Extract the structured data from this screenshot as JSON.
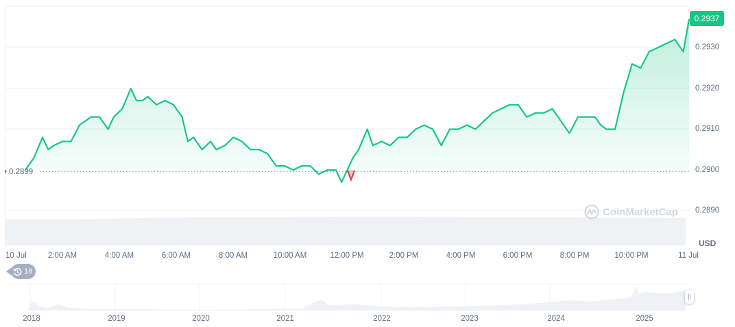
{
  "chart_data": {
    "type": "area",
    "title": "",
    "currency": "USD",
    "xlabel": "",
    "ylabel": "USD",
    "ylim": [
      0.28865,
      0.29395
    ],
    "grid": true,
    "current_price": "0.2937",
    "reference_price": "0.2899",
    "x_ticks": [
      "10 Jul",
      "2:00 AM",
      "4:00 AM",
      "6:00 AM",
      "8:00 AM",
      "10:00 AM",
      "12:00 PM",
      "2:00 PM",
      "4:00 PM",
      "6:00 PM",
      "8:00 PM",
      "10:00 PM",
      "11 Jul"
    ],
    "y_ticks": [
      "0.2890",
      "0.2900",
      "0.2910",
      "0.2920",
      "0.2930"
    ],
    "series": [
      {
        "name": "Price",
        "x_hours": [
          0.7,
          1.0,
          1.3,
          1.5,
          1.7,
          2.0,
          2.3,
          2.6,
          2.8,
          3.0,
          3.3,
          3.6,
          3.8,
          4.1,
          4.4,
          4.6,
          4.8,
          5.0,
          5.3,
          5.6,
          5.9,
          6.2,
          6.4,
          6.6,
          6.9,
          7.2,
          7.4,
          7.7,
          8.0,
          8.3,
          8.6,
          8.9,
          9.2,
          9.5,
          9.8,
          10.1,
          10.4,
          10.7,
          11.0,
          11.3,
          11.6,
          11.8,
          12.0,
          12.2,
          12.4,
          12.7,
          12.9,
          13.2,
          13.5,
          13.8,
          14.1,
          14.4,
          14.7,
          15.0,
          15.3,
          15.6,
          15.9,
          16.2,
          16.5,
          16.8,
          17.1,
          17.4,
          17.7,
          18.0,
          18.3,
          18.6,
          18.9,
          19.2,
          19.5,
          19.8,
          20.1,
          20.4,
          20.7,
          20.9,
          21.1,
          21.4,
          21.7,
          22.0,
          22.3,
          22.6,
          22.9,
          23.2,
          23.5,
          23.8,
          24.0
        ],
        "values": [
          0.29,
          0.2903,
          0.2908,
          0.2905,
          0.2906,
          0.2907,
          0.2907,
          0.2911,
          0.2912,
          0.2913,
          0.2913,
          0.291,
          0.2913,
          0.2915,
          0.292,
          0.2917,
          0.2917,
          0.2918,
          0.2916,
          0.2917,
          0.2916,
          0.2913,
          0.2907,
          0.2908,
          0.2905,
          0.2907,
          0.2905,
          0.2906,
          0.2908,
          0.2907,
          0.2905,
          0.2905,
          0.2904,
          0.2901,
          0.2901,
          0.29,
          0.2901,
          0.2901,
          0.2899,
          0.29,
          0.29,
          0.2897,
          0.29,
          0.2903,
          0.2905,
          0.291,
          0.2906,
          0.2907,
          0.2906,
          0.2908,
          0.2908,
          0.291,
          0.2911,
          0.291,
          0.2906,
          0.291,
          0.291,
          0.2911,
          0.291,
          0.2912,
          0.2914,
          0.2915,
          0.2916,
          0.2916,
          0.2913,
          0.2914,
          0.2914,
          0.2915,
          0.2912,
          0.2909,
          0.2913,
          0.2913,
          0.2913,
          0.2911,
          0.291,
          0.291,
          0.2919,
          0.2926,
          0.2925,
          0.2929,
          0.293,
          0.2931,
          0.2932,
          0.2929,
          0.2937
        ]
      }
    ],
    "overview": {
      "type": "area",
      "x_ticks": [
        "2018",
        "2019",
        "2020",
        "2021",
        "2022",
        "2023",
        "2024",
        "2025"
      ]
    }
  },
  "labels": {
    "price_badge": "0.2937",
    "reference_price": "0.2899",
    "currency": "USD",
    "history_count": "18",
    "watermark": "CoinMarketCap"
  },
  "colors": {
    "up": "#16c784",
    "down": "#ea3943",
    "grid": "#eff2f5",
    "volume": "#eff2f5"
  },
  "icons": {
    "history": "history-clock-icon",
    "watermark_logo": "coinmarketcap-logo-icon",
    "slider_handle": "drag-handle-icon"
  }
}
